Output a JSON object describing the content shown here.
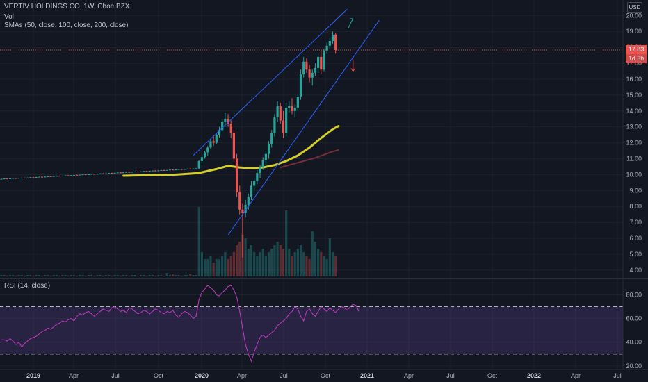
{
  "legend": {
    "title": "VERTIV HOLDINGS CO, 1W, Cboe BZX",
    "vol": "Vol",
    "sma": "SMAs (50, close, 100, close, 200, close)",
    "rsi": "RSI (14, close)"
  },
  "price_scale": {
    "currency": "USD",
    "last_price": "17.83",
    "countdown": "1d 3h",
    "last_price_color": "#ef5350"
  },
  "colors": {
    "background": "#131722",
    "up": "#26a69a",
    "down": "#ef5350",
    "sma50": "#d4cf2b",
    "sma100": "#7a2e3a",
    "trendline": "#2962ff",
    "rsi_line": "#c33cc4",
    "rsi_band": "#7e57c2",
    "arrow_up": "#26a69a",
    "arrow_down": "#ef5350"
  },
  "chart_data": [
    {
      "type": "candlestick",
      "title": "VERTIV HOLDINGS CO, 1W, Cboe BZX",
      "y_ticks": [
        "4.00",
        "5.00",
        "6.00",
        "7.00",
        "8.00",
        "9.00",
        "10.00",
        "11.00",
        "12.00",
        "13.00",
        "14.00",
        "15.00",
        "16.00",
        "17.00",
        "18.00",
        "19.00",
        "20.00"
      ],
      "x_ticks": [
        "2019",
        "Apr",
        "Jul",
        "Oct",
        "2020",
        "Apr",
        "Jul",
        "Oct",
        "2021",
        "Apr",
        "Jul",
        "Oct",
        "2022",
        "Apr",
        "Jul"
      ],
      "x_ticks_bold": [
        "2019",
        "2020",
        "2021",
        "2022"
      ],
      "ylim": [
        3.6,
        20.8
      ],
      "ohlc": [
        [
          9.72,
          9.74,
          9.7,
          9.73
        ],
        [
          9.73,
          9.76,
          9.71,
          9.75
        ],
        [
          9.75,
          9.78,
          9.73,
          9.74
        ],
        [
          9.74,
          9.77,
          9.72,
          9.76
        ],
        [
          9.76,
          9.8,
          9.74,
          9.78
        ],
        [
          9.78,
          9.8,
          9.75,
          9.77
        ],
        [
          9.77,
          9.79,
          9.74,
          9.79
        ],
        [
          9.79,
          9.82,
          9.77,
          9.8
        ],
        [
          9.8,
          9.82,
          9.77,
          9.78
        ],
        [
          9.78,
          9.81,
          9.76,
          9.81
        ],
        [
          9.81,
          9.84,
          9.79,
          9.83
        ],
        [
          9.83,
          9.85,
          9.8,
          9.82
        ],
        [
          9.82,
          9.85,
          9.8,
          9.84
        ],
        [
          9.84,
          9.87,
          9.82,
          9.86
        ],
        [
          9.86,
          9.88,
          9.83,
          9.85
        ],
        [
          9.85,
          9.88,
          9.83,
          9.87
        ],
        [
          9.87,
          9.9,
          9.85,
          9.89
        ],
        [
          9.89,
          9.91,
          9.86,
          9.88
        ],
        [
          9.88,
          9.91,
          9.86,
          9.9
        ],
        [
          9.9,
          9.93,
          9.88,
          9.92
        ],
        [
          9.92,
          9.94,
          9.89,
          9.91
        ],
        [
          9.91,
          9.94,
          9.89,
          9.93
        ],
        [
          9.93,
          9.96,
          9.91,
          9.95
        ],
        [
          9.95,
          9.97,
          9.92,
          9.94
        ],
        [
          9.94,
          9.97,
          9.92,
          9.96
        ],
        [
          9.96,
          9.99,
          9.94,
          9.98
        ],
        [
          9.98,
          10.0,
          9.95,
          9.97
        ],
        [
          9.97,
          10.0,
          9.95,
          9.99
        ],
        [
          9.99,
          10.02,
          9.97,
          10.01
        ],
        [
          10.01,
          10.03,
          9.98,
          10.0
        ],
        [
          10.0,
          10.03,
          9.98,
          10.02
        ],
        [
          10.02,
          10.05,
          10.0,
          10.04
        ],
        [
          10.04,
          10.06,
          10.01,
          10.03
        ],
        [
          10.03,
          10.06,
          10.01,
          10.05
        ],
        [
          10.05,
          10.08,
          10.03,
          10.07
        ],
        [
          10.07,
          10.09,
          10.04,
          10.06
        ],
        [
          10.06,
          10.09,
          10.04,
          10.08
        ],
        [
          10.08,
          10.11,
          10.06,
          10.1
        ],
        [
          10.1,
          10.12,
          10.07,
          10.09
        ],
        [
          10.09,
          10.12,
          10.07,
          10.11
        ],
        [
          10.11,
          10.14,
          10.09,
          10.13
        ],
        [
          10.13,
          10.15,
          10.1,
          10.12
        ],
        [
          10.12,
          10.15,
          10.1,
          10.14
        ],
        [
          10.14,
          10.17,
          10.12,
          10.16
        ],
        [
          10.16,
          10.18,
          10.13,
          10.15
        ],
        [
          10.15,
          10.18,
          10.13,
          10.17
        ],
        [
          10.17,
          10.2,
          10.15,
          10.19
        ],
        [
          10.19,
          10.21,
          10.16,
          10.18
        ],
        [
          10.18,
          10.21,
          10.16,
          10.2
        ],
        [
          10.2,
          10.23,
          10.18,
          10.22
        ],
        [
          10.22,
          10.24,
          10.19,
          10.21
        ],
        [
          10.21,
          10.24,
          10.19,
          10.23
        ],
        [
          10.23,
          10.26,
          10.21,
          10.25
        ],
        [
          10.25,
          10.27,
          10.22,
          10.24
        ],
        [
          10.24,
          10.27,
          10.22,
          10.26
        ],
        [
          10.26,
          10.29,
          10.24,
          10.28
        ],
        [
          10.28,
          10.3,
          10.25,
          10.27
        ],
        [
          10.27,
          10.3,
          10.25,
          10.29
        ],
        [
          10.29,
          10.32,
          10.27,
          10.31
        ],
        [
          10.31,
          10.33,
          10.28,
          10.3
        ],
        [
          10.3,
          10.33,
          10.28,
          10.32
        ],
        [
          10.32,
          10.35,
          10.3,
          10.34
        ],
        [
          10.34,
          10.36,
          10.31,
          10.33
        ],
        [
          10.33,
          10.36,
          10.31,
          10.35
        ],
        [
          10.35,
          10.38,
          10.33,
          10.37
        ],
        [
          10.37,
          10.4,
          10.34,
          10.36
        ],
        [
          10.36,
          10.39,
          10.34,
          10.38
        ],
        [
          10.38,
          10.4,
          10.36,
          10.39
        ],
        [
          10.39,
          10.9,
          10.35,
          10.85
        ],
        [
          10.85,
          11.2,
          10.7,
          11.1
        ],
        [
          11.1,
          11.5,
          11.0,
          11.4
        ],
        [
          11.4,
          11.8,
          11.2,
          11.7
        ],
        [
          11.7,
          12.2,
          11.6,
          12.1
        ],
        [
          12.1,
          12.5,
          11.8,
          12.0
        ],
        [
          12.0,
          12.6,
          11.9,
          12.5
        ],
        [
          12.5,
          13.0,
          12.3,
          12.8
        ],
        [
          12.8,
          13.5,
          12.7,
          13.3
        ],
        [
          13.3,
          13.9,
          13.0,
          13.5
        ],
        [
          13.5,
          13.8,
          13.0,
          13.2
        ],
        [
          13.2,
          13.4,
          12.3,
          12.6
        ],
        [
          12.6,
          12.8,
          10.8,
          11.0
        ],
        [
          11.0,
          11.3,
          8.6,
          8.9
        ],
        [
          8.9,
          9.3,
          7.5,
          7.8
        ],
        [
          7.8,
          8.2,
          4.8,
          7.6
        ],
        [
          7.6,
          8.4,
          7.3,
          8.1
        ],
        [
          8.1,
          8.8,
          7.8,
          8.6
        ],
        [
          8.6,
          9.6,
          8.4,
          9.3
        ],
        [
          9.3,
          9.8,
          9.0,
          9.6
        ],
        [
          9.6,
          10.3,
          9.4,
          10.1
        ],
        [
          10.1,
          10.6,
          9.8,
          10.5
        ],
        [
          10.5,
          11.1,
          10.3,
          10.9
        ],
        [
          10.9,
          11.5,
          10.6,
          11.3
        ],
        [
          11.3,
          12.1,
          11.0,
          11.9
        ],
        [
          11.9,
          12.8,
          11.7,
          12.6
        ],
        [
          12.6,
          13.8,
          12.4,
          13.6
        ],
        [
          13.6,
          14.6,
          13.3,
          14.3
        ],
        [
          14.3,
          14.5,
          13.2,
          13.4
        ],
        [
          13.4,
          14.0,
          12.3,
          12.6
        ],
        [
          12.6,
          14.5,
          12.4,
          14.2
        ],
        [
          14.2,
          14.6,
          13.9,
          14.3
        ],
        [
          14.3,
          14.8,
          13.8,
          14.0
        ],
        [
          14.0,
          14.4,
          13.6,
          14.2
        ],
        [
          14.2,
          15.0,
          14.0,
          14.9
        ],
        [
          14.9,
          16.6,
          14.7,
          16.3
        ],
        [
          16.3,
          17.4,
          16.1,
          17.1
        ],
        [
          17.1,
          17.3,
          16.4,
          16.6
        ],
        [
          16.6,
          16.9,
          15.8,
          16.1
        ],
        [
          16.1,
          16.6,
          15.6,
          16.4
        ],
        [
          16.4,
          17.0,
          16.2,
          16.7
        ],
        [
          16.7,
          17.6,
          16.4,
          17.4
        ],
        [
          17.4,
          17.8,
          16.3,
          16.6
        ],
        [
          16.6,
          17.9,
          16.5,
          17.8
        ],
        [
          17.8,
          18.3,
          17.6,
          18.1
        ],
        [
          18.1,
          18.6,
          17.9,
          18.4
        ],
        [
          18.4,
          19.0,
          18.2,
          18.8
        ],
        [
          18.8,
          18.9,
          17.6,
          17.83
        ]
      ],
      "sma50": [
        [
          42,
          9.93
        ],
        [
          50,
          9.96
        ],
        [
          60,
          10.0
        ],
        [
          68,
          10.1
        ],
        [
          74,
          10.35
        ],
        [
          78,
          10.55
        ],
        [
          82,
          10.45
        ],
        [
          86,
          10.4
        ],
        [
          90,
          10.45
        ],
        [
          94,
          10.6
        ],
        [
          98,
          10.85
        ],
        [
          102,
          11.2
        ],
        [
          106,
          11.7
        ],
        [
          110,
          12.3
        ],
        [
          114,
          12.85
        ],
        [
          116,
          13.05
        ]
      ],
      "sma100": [
        [
          96,
          10.45
        ],
        [
          102,
          10.75
        ],
        [
          108,
          11.05
        ],
        [
          114,
          11.45
        ],
        [
          116,
          11.55
        ]
      ],
      "volume": [
        0.02,
        0.02,
        0.01,
        0.02,
        0.02,
        0.01,
        0.02,
        0.02,
        0.01,
        0.02,
        0.02,
        0.01,
        0.02,
        0.02,
        0.01,
        0.02,
        0.02,
        0.01,
        0.02,
        0.02,
        0.01,
        0.02,
        0.02,
        0.01,
        0.02,
        0.02,
        0.01,
        0.02,
        0.02,
        0.01,
        0.02,
        0.02,
        0.01,
        0.02,
        0.02,
        0.01,
        0.02,
        0.02,
        0.01,
        0.02,
        0.02,
        0.01,
        0.02,
        0.02,
        0.01,
        0.02,
        0.02,
        0.01,
        0.02,
        0.02,
        0.01,
        0.02,
        0.02,
        0.01,
        0.02,
        0.02,
        0.01,
        0.05,
        0.02,
        0.03,
        0.02,
        0.02,
        0.01,
        0.02,
        0.02,
        0.03,
        0.02,
        0.02,
        1.0,
        0.35,
        0.25,
        0.25,
        0.3,
        0.2,
        0.25,
        0.25,
        0.3,
        0.35,
        0.25,
        0.3,
        0.35,
        0.45,
        0.5,
        0.6,
        0.55,
        0.4,
        0.45,
        0.35,
        0.3,
        0.35,
        0.4,
        0.3,
        0.35,
        0.4,
        0.45,
        0.5,
        0.45,
        0.4,
        0.95,
        0.4,
        0.3,
        0.35,
        0.4,
        0.45,
        0.35,
        0.3,
        0.25,
        0.65,
        0.5,
        0.4,
        0.35,
        0.3,
        0.25,
        0.55,
        0.35,
        0.3,
        0.3,
        0.25,
        0.3,
        0.25
      ],
      "trendlines": [
        {
          "from": [
            66,
            11.2
          ],
          "to": [
            119,
            20.4
          ]
        },
        {
          "from": [
            78,
            6.2
          ],
          "to": [
            130,
            19.7
          ]
        }
      ],
      "arrows": [
        {
          "direction": "up",
          "at": [
            120,
            19.8
          ]
        },
        {
          "direction": "down",
          "at": [
            121,
            16.5
          ]
        }
      ]
    },
    {
      "type": "line",
      "title": "RSI (14, close)",
      "y_ticks": [
        "20.00",
        "40.00",
        "60.00",
        "80.00"
      ],
      "ylim": [
        17,
        92
      ],
      "bands": [
        30,
        70
      ],
      "values": [
        42,
        42,
        41,
        43,
        41,
        38,
        40,
        36,
        39,
        41,
        43,
        44,
        45,
        47,
        49,
        50,
        52,
        51,
        53,
        55,
        56,
        58,
        57,
        59,
        60,
        58,
        62,
        64,
        63,
        65,
        66,
        64,
        62,
        64,
        66,
        68,
        67,
        66,
        69,
        70,
        68,
        66,
        67,
        65,
        69,
        68,
        66,
        64,
        65,
        67,
        66,
        64,
        66,
        68,
        67,
        65,
        64,
        66,
        65,
        67,
        63,
        61,
        64,
        66,
        65,
        63,
        60,
        62,
        76,
        82,
        85,
        88,
        86,
        84,
        80,
        79,
        82,
        84,
        87,
        88,
        84,
        78,
        66,
        52,
        38,
        30,
        24,
        32,
        38,
        44,
        46,
        44,
        46,
        48,
        50,
        54,
        56,
        58,
        60,
        64,
        66,
        70,
        68,
        62,
        58,
        66,
        68,
        64,
        62,
        66,
        70,
        68,
        66,
        69,
        67,
        65,
        68,
        70,
        69,
        67,
        70,
        72,
        71,
        66
      ]
    }
  ]
}
